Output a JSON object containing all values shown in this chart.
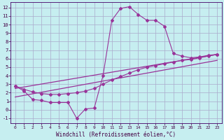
{
  "xlabel": "Windchill (Refroidissement éolien,°C)",
  "background_color": "#c6eef0",
  "grid_color": "#aaaacc",
  "line_color": "#993399",
  "xlim": [
    -0.5,
    23.5
  ],
  "ylim": [
    -1.6,
    12.6
  ],
  "xticks": [
    0,
    1,
    2,
    3,
    4,
    5,
    6,
    7,
    8,
    9,
    10,
    11,
    12,
    13,
    14,
    15,
    16,
    17,
    18,
    19,
    20,
    21,
    22,
    23
  ],
  "yticks": [
    -1,
    0,
    1,
    2,
    3,
    4,
    5,
    6,
    7,
    8,
    9,
    10,
    11,
    12
  ],
  "series1_x": [
    0,
    1,
    2,
    3,
    4,
    5,
    6,
    7,
    8,
    9,
    10,
    11,
    12,
    13,
    14,
    15,
    16,
    17,
    18,
    19,
    20,
    21,
    22,
    23
  ],
  "series1_y": [
    2.8,
    2.2,
    1.2,
    1.1,
    0.85,
    0.85,
    0.85,
    -1.0,
    0.1,
    0.2,
    4.0,
    10.5,
    11.9,
    12.1,
    11.2,
    10.5,
    10.5,
    9.8,
    6.6,
    6.3,
    6.1,
    6.2,
    6.4,
    6.5
  ],
  "series2_x": [
    0,
    1,
    2,
    3,
    4,
    5,
    6,
    7,
    8,
    9,
    10,
    11,
    12,
    13,
    14,
    15,
    16,
    17,
    18,
    19,
    20,
    21,
    22,
    23
  ],
  "series2_y": [
    2.8,
    2.4,
    2.1,
    1.9,
    1.8,
    1.8,
    1.9,
    2.0,
    2.2,
    2.5,
    3.0,
    3.5,
    3.9,
    4.3,
    4.7,
    5.0,
    5.2,
    5.4,
    5.6,
    5.8,
    5.9,
    6.1,
    6.3,
    6.5
  ],
  "series3_x": [
    0,
    23
  ],
  "series3_y": [
    2.5,
    6.5
  ],
  "series4_x": [
    0,
    23
  ],
  "series4_y": [
    1.5,
    5.8
  ]
}
